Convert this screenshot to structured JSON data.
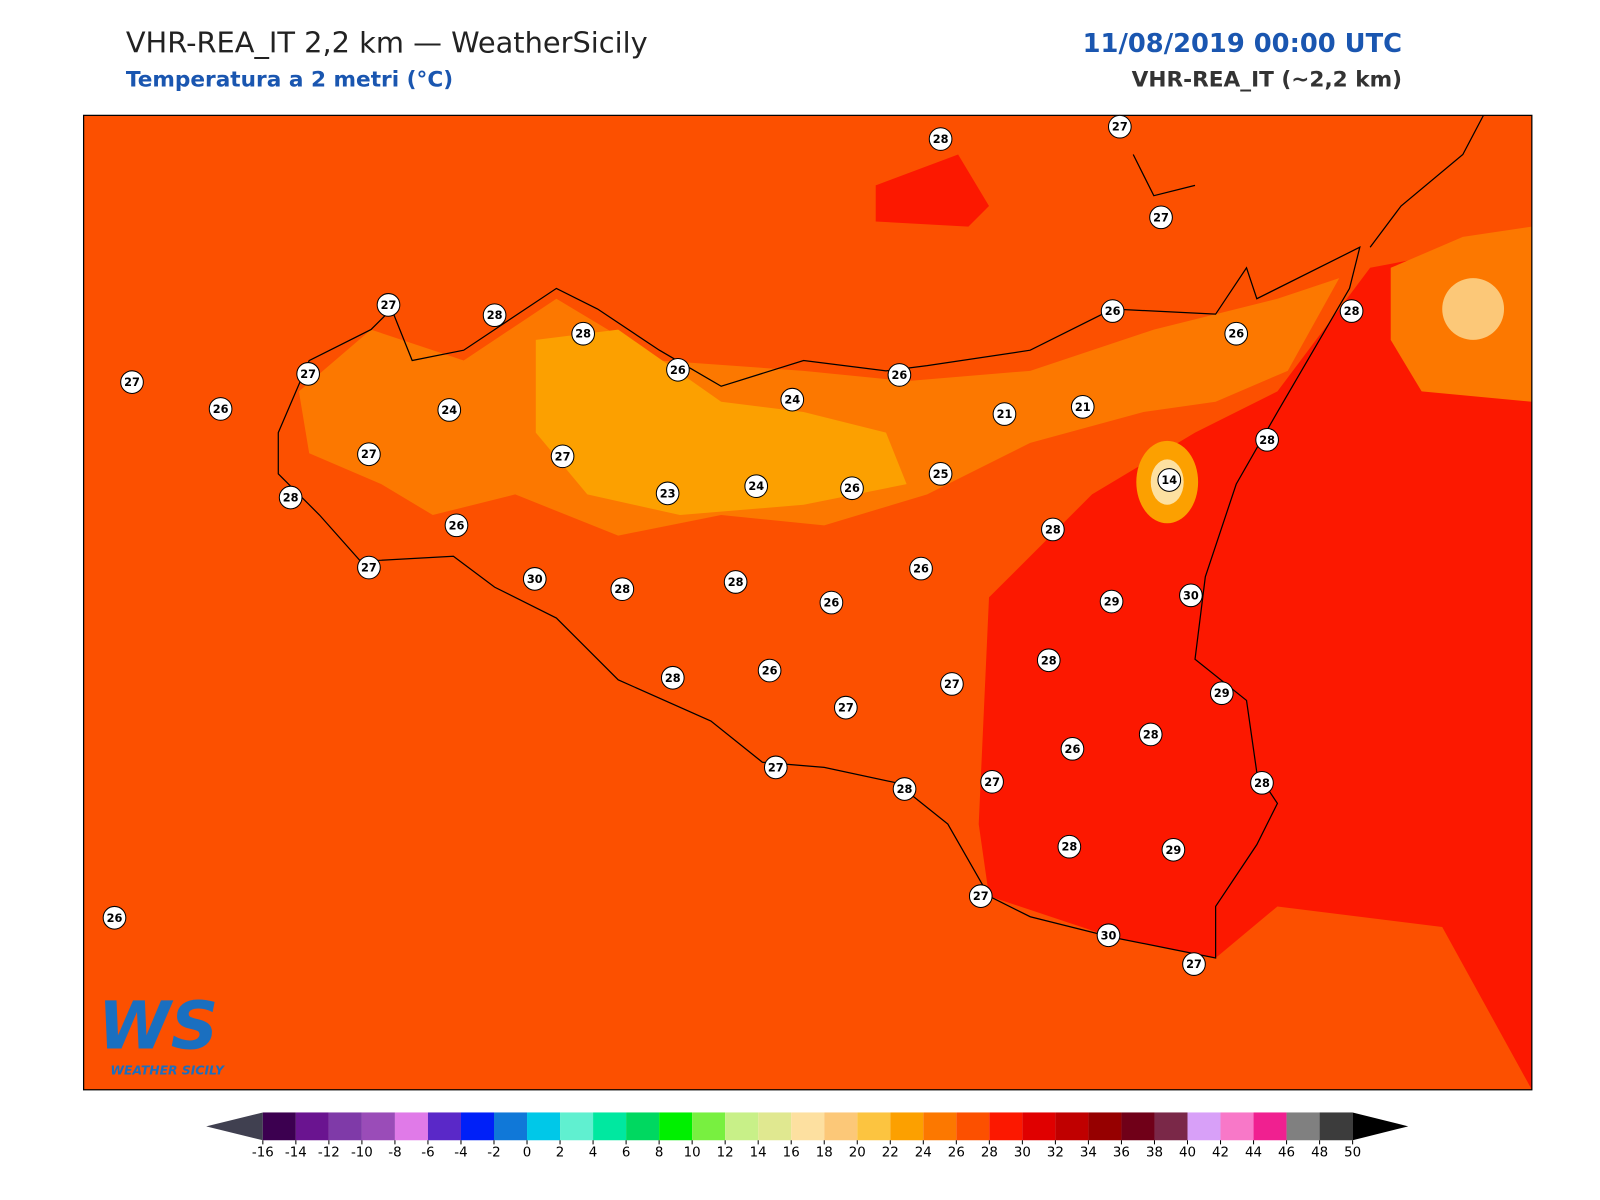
{
  "header": {
    "title": "VHR-REA_IT 2,2 km — WeatherSicily",
    "subtitle": "Temperatura a 2 metri (°C)",
    "date": "11/08/2019 00:00 UTC",
    "model": "VHR-REA_IT (~2,2 km)"
  },
  "map": {
    "stations": [
      28,
      27,
      27,
      27,
      28,
      28,
      27,
      27,
      26,
      26,
      26,
      26,
      26,
      28,
      24,
      24,
      21,
      21,
      27,
      27,
      28,
      14,
      25,
      24,
      26,
      23,
      28,
      26,
      28,
      26,
      27,
      30,
      28,
      28,
      26,
      29,
      30,
      28,
      26,
      28,
      27,
      29,
      27,
      26,
      28,
      27,
      28,
      27,
      28,
      28,
      29,
      27,
      30,
      27,
      26
    ]
  },
  "colorbar": {
    "ticks": [
      -16,
      -14,
      -12,
      -10,
      -8,
      -6,
      -4,
      -2,
      0,
      2,
      4,
      6,
      8,
      10,
      12,
      14,
      16,
      18,
      20,
      22,
      24,
      26,
      28,
      30,
      32,
      34,
      36,
      38,
      40,
      42,
      44,
      46,
      48,
      50
    ],
    "colors": [
      "#3c0050",
      "#6a1490",
      "#7f3aa8",
      "#9a4cb8",
      "#e07ae8",
      "#5a28c8",
      "#0020f8",
      "#1078d8",
      "#00c8e8",
      "#60f0d0",
      "#00e8a0",
      "#00d860",
      "#00f000",
      "#78f040",
      "#c8f088",
      "#e0e890",
      "#fde0a0",
      "#fcc878",
      "#fcc440",
      "#fca000",
      "#fc7800",
      "#fc5000",
      "#fc1800",
      "#e00000",
      "#c00000",
      "#960000",
      "#700018",
      "#7a2848",
      "#d8a0f8",
      "#f878c8",
      "#f02090",
      "#808080",
      "#3c3c3c"
    ],
    "under_color": "#404050",
    "over_color": "#000000"
  },
  "logo": {
    "mark": "WS",
    "text": "WEATHER SICILY"
  }
}
